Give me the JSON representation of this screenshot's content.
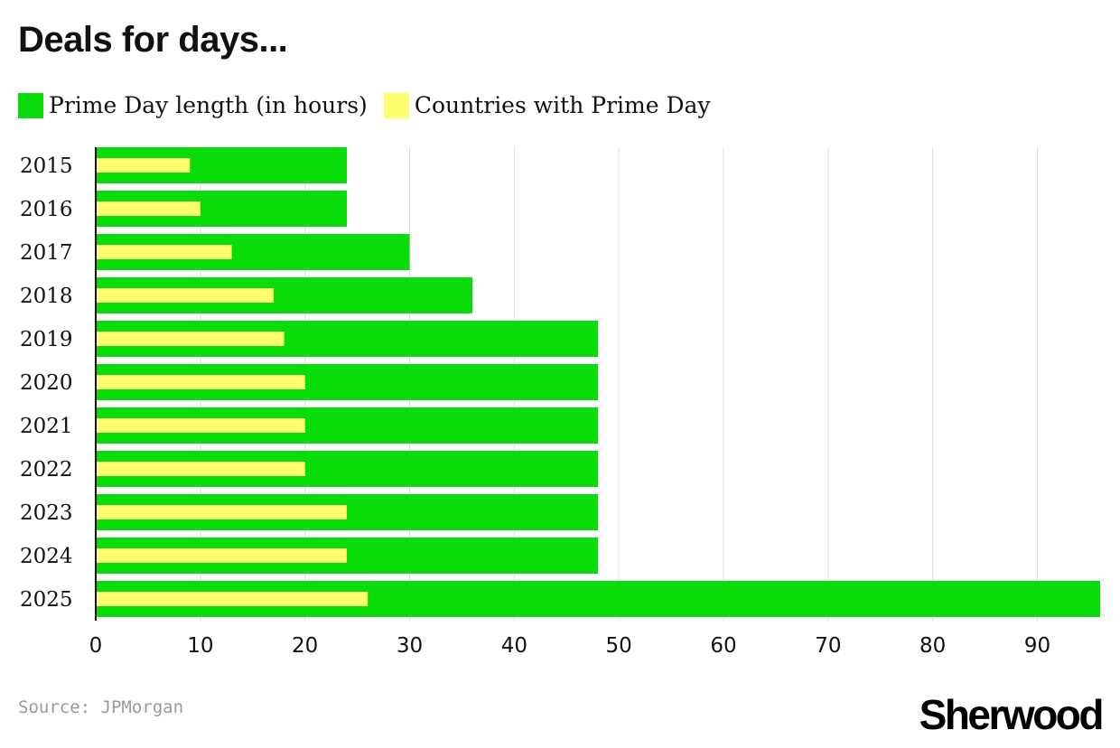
{
  "title": "Deals for days...",
  "source": "Source: JPMorgan",
  "brand": "Sherwood",
  "colors": {
    "length": "#0adc0a",
    "countries": "#ffff6e",
    "grid": "#dddddd",
    "axis": "#111111"
  },
  "chart_data": {
    "type": "bar",
    "orientation": "horizontal",
    "categories": [
      "2015",
      "2016",
      "2017",
      "2018",
      "2019",
      "2020",
      "2021",
      "2022",
      "2023",
      "2024",
      "2025"
    ],
    "series": [
      {
        "name": "Prime Day length (in hours)",
        "values": [
          24,
          24,
          30,
          36,
          48,
          48,
          48,
          48,
          48,
          48,
          96
        ]
      },
      {
        "name": "Countries with Prime Day",
        "values": [
          9,
          10,
          13,
          17,
          18,
          20,
          20,
          20,
          24,
          24,
          26
        ]
      }
    ],
    "xticks": [
      0,
      10,
      20,
      30,
      40,
      50,
      60,
      70,
      80,
      90
    ],
    "xlim": [
      0,
      96
    ],
    "grid": true,
    "legend_position": "top-left"
  }
}
